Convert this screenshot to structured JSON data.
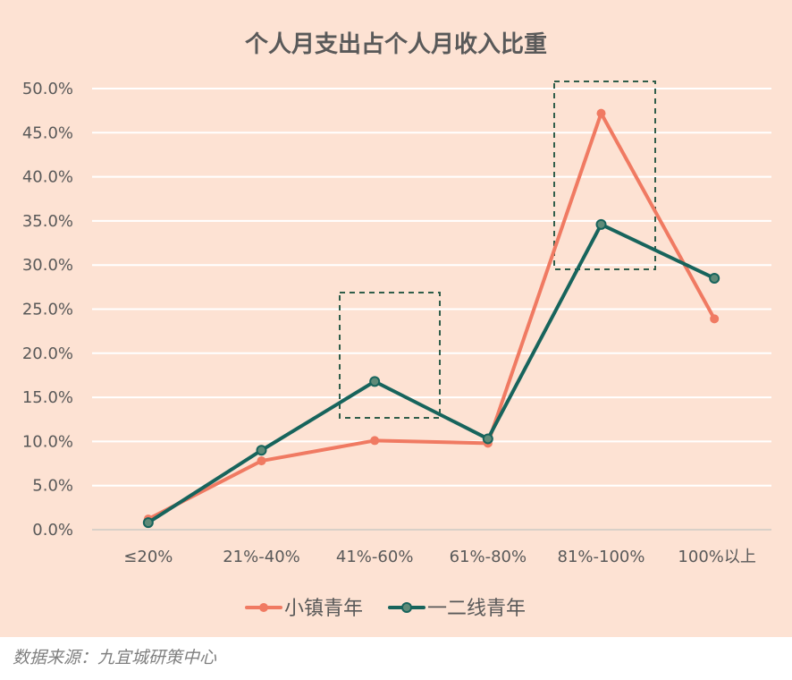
{
  "chart_data": {
    "type": "line",
    "title": "个人月支出占个人月收入比重",
    "xlabel": "",
    "ylabel": "",
    "categories": [
      "≤20%",
      "21%-40%",
      "41%-60%",
      "61%-80%",
      "81%-100%",
      "100%以上"
    ],
    "ylim": [
      0,
      50
    ],
    "yticks": [
      "0.0%",
      "5.0%",
      "10.0%",
      "15.0%",
      "20.0%",
      "25.0%",
      "30.0%",
      "35.0%",
      "40.0%",
      "45.0%",
      "50.0%"
    ],
    "grid": true,
    "legend_position": "bottom",
    "series": [
      {
        "name": "小镇青年",
        "color": "#f07a62",
        "values": [
          1.2,
          7.8,
          10.1,
          9.8,
          47.2,
          23.9
        ]
      },
      {
        "name": "一二线青年",
        "color": "#17645c",
        "values": [
          0.8,
          9.0,
          16.8,
          10.3,
          34.6,
          28.5
        ]
      }
    ],
    "highlighted_categories": [
      "41%-60%",
      "81%-100%"
    ]
  },
  "source": "数据来源：九宜城研策中心"
}
